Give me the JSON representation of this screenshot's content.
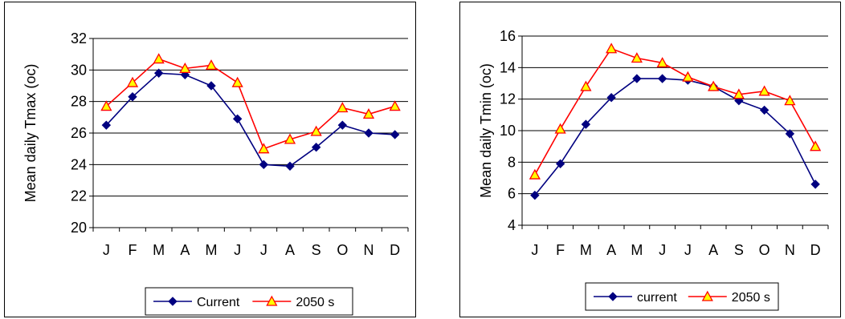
{
  "chart_data": [
    {
      "type": "line",
      "ylabel": "Mean daily Tmax (oc)",
      "xlabel": "",
      "categories": [
        "J",
        "F",
        "M",
        "A",
        "M",
        "J",
        "J",
        "A",
        "S",
        "O",
        "N",
        "D"
      ],
      "ylim": [
        20,
        32
      ],
      "yticks": [
        20,
        22,
        24,
        26,
        28,
        30,
        32
      ],
      "grid": true,
      "legend_position": "bottom",
      "series": [
        {
          "name": "Current",
          "color": "#000080",
          "marker": "diamond",
          "values": [
            26.5,
            28.3,
            29.8,
            29.7,
            29.0,
            26.9,
            24.0,
            23.9,
            25.1,
            26.5,
            26.0,
            25.9
          ]
        },
        {
          "name": "2050 s",
          "color": "#ff0000",
          "marker": "triangle",
          "values": [
            27.7,
            29.2,
            30.7,
            30.1,
            30.3,
            29.2,
            25.0,
            25.6,
            26.1,
            27.6,
            27.2,
            27.7
          ]
        }
      ]
    },
    {
      "type": "line",
      "ylabel": "Mean daily Tmin (oc)",
      "xlabel": "",
      "categories": [
        "J",
        "F",
        "M",
        "A",
        "M",
        "J",
        "J",
        "A",
        "S",
        "O",
        "N",
        "D"
      ],
      "ylim": [
        4,
        16
      ],
      "yticks": [
        4,
        6,
        8,
        10,
        12,
        14,
        16
      ],
      "grid": true,
      "legend_position": "bottom",
      "series": [
        {
          "name": "current",
          "color": "#000080",
          "marker": "diamond",
          "values": [
            5.9,
            7.9,
            10.4,
            12.1,
            13.3,
            13.3,
            13.2,
            12.8,
            11.9,
            11.3,
            9.8,
            6.6
          ]
        },
        {
          "name": "2050 s",
          "color": "#ff0000",
          "marker": "triangle",
          "values": [
            7.2,
            10.1,
            12.8,
            15.2,
            14.6,
            14.3,
            13.4,
            12.8,
            12.3,
            12.5,
            11.9,
            9.0
          ]
        }
      ]
    }
  ]
}
